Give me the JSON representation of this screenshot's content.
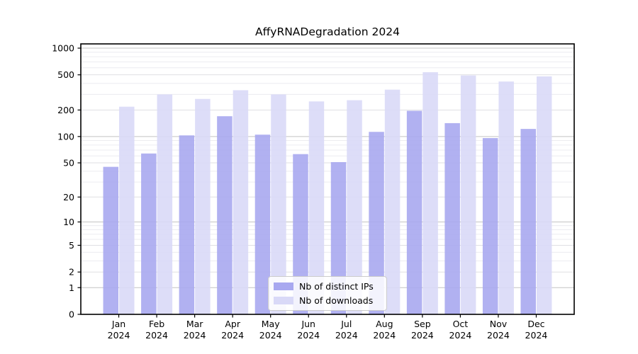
{
  "chart_data": {
    "type": "bar",
    "title": "AffyRNADegradation 2024",
    "categories": [
      "Jan 2024",
      "Feb 2024",
      "Mar 2024",
      "Apr 2024",
      "May 2024",
      "Jun 2024",
      "Jul 2024",
      "Aug 2024",
      "Sep 2024",
      "Oct 2024",
      "Nov 2024",
      "Dec 2024"
    ],
    "series": [
      {
        "name": "Nb of distinct IPs",
        "color": "#a8a8f0",
        "values": [
          45,
          64,
          103,
          170,
          105,
          63,
          51,
          113,
          196,
          142,
          96,
          122
        ]
      },
      {
        "name": "Nb of downloads",
        "color": "#d9d9f7",
        "values": [
          218,
          300,
          267,
          335,
          300,
          250,
          258,
          340,
          535,
          492,
          420,
          480
        ]
      }
    ],
    "yscale": "log1p",
    "ylim": [
      0,
      1000
    ],
    "yticks": [
      0,
      1,
      2,
      5,
      10,
      20,
      50,
      100,
      200,
      500,
      1000
    ],
    "xlabel": "",
    "ylabel": "",
    "grid": true,
    "legend_position": "lower center"
  }
}
